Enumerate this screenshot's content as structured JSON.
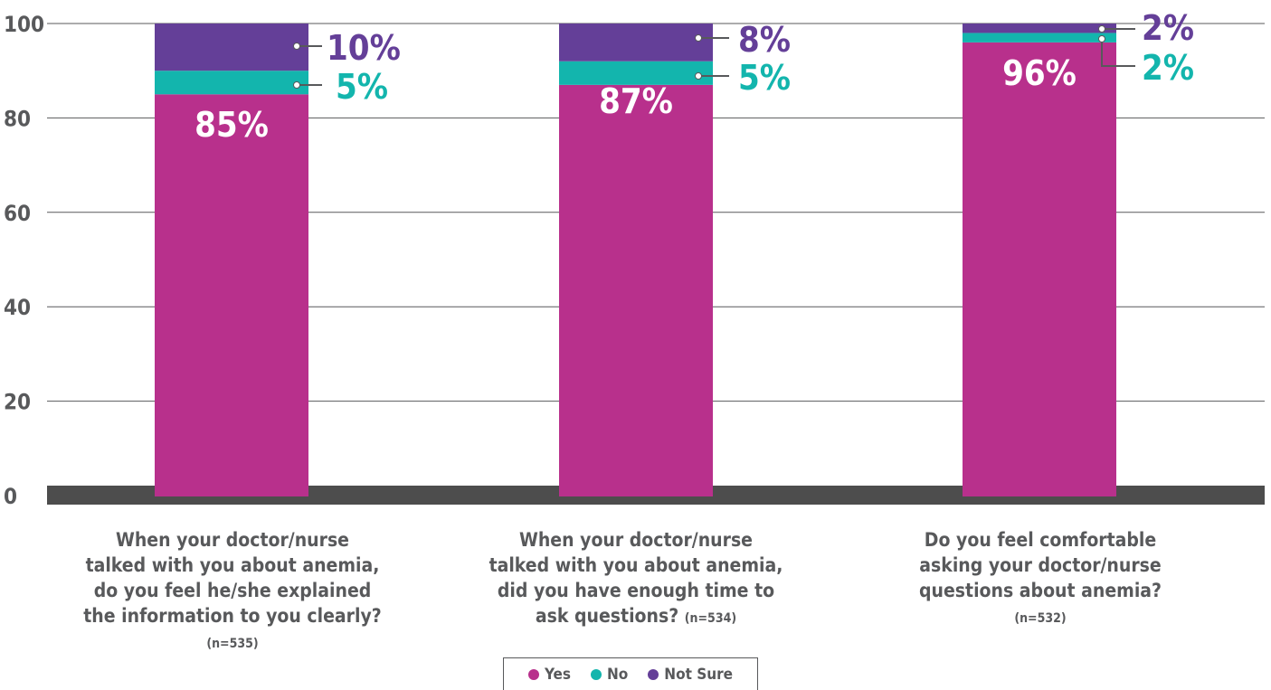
{
  "colors": {
    "yes": "#b8308c",
    "no": "#13b5ad",
    "not_sure": "#643f98",
    "axis_text": "#58595b",
    "baseline": "#4d4d4d",
    "grid": "#58595b"
  },
  "chart_data": {
    "type": "bar",
    "stacked": true,
    "ylim": [
      0,
      100
    ],
    "yticks": [
      0,
      20,
      40,
      60,
      80,
      100
    ],
    "grid": true,
    "legend_position": "bottom-center",
    "categories": [
      "When your doctor/nurse talked with you about anemia, do you feel he/she explained the information to you clearly?",
      "When your doctor/nurse talked with you about anemia, did you have enough time to ask questions?",
      "Do you feel comfortable asking your doctor/nurse questions about anemia?"
    ],
    "sample_sizes": [
      "(n=535)",
      "(n=534)",
      "(n=532)"
    ],
    "series": [
      {
        "name": "Yes",
        "values": [
          85,
          87,
          96
        ],
        "labels": [
          "85%",
          "87%",
          "96%"
        ]
      },
      {
        "name": "No",
        "values": [
          5,
          5,
          2
        ],
        "labels": [
          "5%",
          "5%",
          "2%"
        ]
      },
      {
        "name": "Not Sure",
        "values": [
          10,
          8,
          2
        ],
        "labels": [
          "10%",
          "8%",
          "2%"
        ]
      }
    ]
  },
  "legend": {
    "yes": "Yes",
    "no": "No",
    "not_sure": "Not Sure"
  }
}
